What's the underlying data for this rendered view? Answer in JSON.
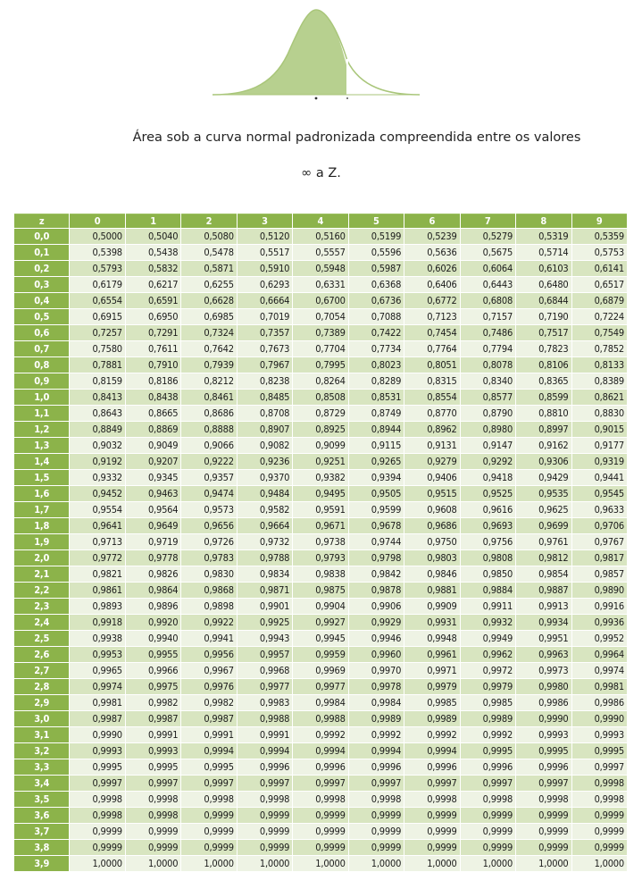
{
  "caption": {
    "line1": "Área sob a curva normal padronizada compreendida entre os valores",
    "line2_symbol": "∞",
    "line2_text": " a Z."
  },
  "colors": {
    "header_green": "#8cb34a",
    "row_light": "#eef3e4",
    "row_dark": "#d8e5c0",
    "curve_fill": "#b7d08f"
  },
  "table": {
    "corner_label": "z",
    "columns": [
      "0",
      "1",
      "2",
      "3",
      "4",
      "5",
      "6",
      "7",
      "8",
      "9"
    ],
    "rows": [
      {
        "z": "0,0",
        "v": [
          "0,5000",
          "0,5040",
          "0,5080",
          "0,5120",
          "0,5160",
          "0,5199",
          "0,5239",
          "0,5279",
          "0,5319",
          "0,5359"
        ]
      },
      {
        "z": "0,1",
        "v": [
          "0,5398",
          "0,5438",
          "0,5478",
          "0,5517",
          "0,5557",
          "0,5596",
          "0,5636",
          "0,5675",
          "0,5714",
          "0,5753"
        ]
      },
      {
        "z": "0,2",
        "v": [
          "0,5793",
          "0,5832",
          "0,5871",
          "0,5910",
          "0,5948",
          "0,5987",
          "0,6026",
          "0,6064",
          "0,6103",
          "0,6141"
        ]
      },
      {
        "z": "0,3",
        "v": [
          "0,6179",
          "0,6217",
          "0,6255",
          "0,6293",
          "0,6331",
          "0,6368",
          "0,6406",
          "0,6443",
          "0,6480",
          "0,6517"
        ]
      },
      {
        "z": "0,4",
        "v": [
          "0,6554",
          "0,6591",
          "0,6628",
          "0,6664",
          "0,6700",
          "0,6736",
          "0,6772",
          "0,6808",
          "0,6844",
          "0,6879"
        ]
      },
      {
        "z": "0,5",
        "v": [
          "0,6915",
          "0,6950",
          "0,6985",
          "0,7019",
          "0,7054",
          "0,7088",
          "0,7123",
          "0,7157",
          "0,7190",
          "0,7224"
        ]
      },
      {
        "z": "0,6",
        "v": [
          "0,7257",
          "0,7291",
          "0,7324",
          "0,7357",
          "0,7389",
          "0,7422",
          "0,7454",
          "0,7486",
          "0,7517",
          "0,7549"
        ]
      },
      {
        "z": "0,7",
        "v": [
          "0,7580",
          "0,7611",
          "0,7642",
          "0,7673",
          "0,7704",
          "0,7734",
          "0,7764",
          "0,7794",
          "0,7823",
          "0,7852"
        ]
      },
      {
        "z": "0,8",
        "v": [
          "0,7881",
          "0,7910",
          "0,7939",
          "0,7967",
          "0,7995",
          "0,8023",
          "0,8051",
          "0,8078",
          "0,8106",
          "0,8133"
        ]
      },
      {
        "z": "0,9",
        "v": [
          "0,8159",
          "0,8186",
          "0,8212",
          "0,8238",
          "0,8264",
          "0,8289",
          "0,8315",
          "0,8340",
          "0,8365",
          "0,8389"
        ]
      },
      {
        "z": "1,0",
        "v": [
          "0,8413",
          "0,8438",
          "0,8461",
          "0,8485",
          "0,8508",
          "0,8531",
          "0,8554",
          "0,8577",
          "0,8599",
          "0,8621"
        ]
      },
      {
        "z": "1,1",
        "v": [
          "0,8643",
          "0,8665",
          "0,8686",
          "0,8708",
          "0,8729",
          "0,8749",
          "0,8770",
          "0,8790",
          "0,8810",
          "0,8830"
        ]
      },
      {
        "z": "1,2",
        "v": [
          "0,8849",
          "0,8869",
          "0,8888",
          "0,8907",
          "0,8925",
          "0,8944",
          "0,8962",
          "0,8980",
          "0,8997",
          "0,9015"
        ]
      },
      {
        "z": "1,3",
        "v": [
          "0,9032",
          "0,9049",
          "0,9066",
          "0,9082",
          "0,9099",
          "0,9115",
          "0,9131",
          "0,9147",
          "0,9162",
          "0,9177"
        ]
      },
      {
        "z": "1,4",
        "v": [
          "0,9192",
          "0,9207",
          "0,9222",
          "0,9236",
          "0,9251",
          "0,9265",
          "0,9279",
          "0,9292",
          "0,9306",
          "0,9319"
        ]
      },
      {
        "z": "1,5",
        "v": [
          "0,9332",
          "0,9345",
          "0,9357",
          "0,9370",
          "0,9382",
          "0,9394",
          "0,9406",
          "0,9418",
          "0,9429",
          "0,9441"
        ]
      },
      {
        "z": "1,6",
        "v": [
          "0,9452",
          "0,9463",
          "0,9474",
          "0,9484",
          "0,9495",
          "0,9505",
          "0,9515",
          "0,9525",
          "0,9535",
          "0,9545"
        ]
      },
      {
        "z": "1,7",
        "v": [
          "0,9554",
          "0,9564",
          "0,9573",
          "0,9582",
          "0,9591",
          "0,9599",
          "0,9608",
          "0,9616",
          "0,9625",
          "0,9633"
        ]
      },
      {
        "z": "1,8",
        "v": [
          "0,9641",
          "0,9649",
          "0,9656",
          "0,9664",
          "0,9671",
          "0,9678",
          "0,9686",
          "0,9693",
          "0,9699",
          "0,9706"
        ]
      },
      {
        "z": "1,9",
        "v": [
          "0,9713",
          "0,9719",
          "0,9726",
          "0,9732",
          "0,9738",
          "0,9744",
          "0,9750",
          "0,9756",
          "0,9761",
          "0,9767"
        ]
      },
      {
        "z": "2,0",
        "v": [
          "0,9772",
          "0,9778",
          "0,9783",
          "0,9788",
          "0,9793",
          "0,9798",
          "0,9803",
          "0,9808",
          "0,9812",
          "0,9817"
        ]
      },
      {
        "z": "2,1",
        "v": [
          "0,9821",
          "0,9826",
          "0,9830",
          "0,9834",
          "0,9838",
          "0,9842",
          "0,9846",
          "0,9850",
          "0,9854",
          "0,9857"
        ]
      },
      {
        "z": "2,2",
        "v": [
          "0,9861",
          "0,9864",
          "0,9868",
          "0,9871",
          "0,9875",
          "0,9878",
          "0,9881",
          "0,9884",
          "0,9887",
          "0,9890"
        ]
      },
      {
        "z": "2,3",
        "v": [
          "0,9893",
          "0,9896",
          "0,9898",
          "0,9901",
          "0,9904",
          "0,9906",
          "0,9909",
          "0,9911",
          "0,9913",
          "0,9916"
        ]
      },
      {
        "z": "2,4",
        "v": [
          "0,9918",
          "0,9920",
          "0,9922",
          "0,9925",
          "0,9927",
          "0,9929",
          "0,9931",
          "0,9932",
          "0,9934",
          "0,9936"
        ]
      },
      {
        "z": "2,5",
        "v": [
          "0,9938",
          "0,9940",
          "0,9941",
          "0,9943",
          "0,9945",
          "0,9946",
          "0,9948",
          "0,9949",
          "0,9951",
          "0,9952"
        ]
      },
      {
        "z": "2,6",
        "v": [
          "0,9953",
          "0,9955",
          "0,9956",
          "0,9957",
          "0,9959",
          "0,9960",
          "0,9961",
          "0,9962",
          "0,9963",
          "0,9964"
        ]
      },
      {
        "z": "2,7",
        "v": [
          "0,9965",
          "0,9966",
          "0,9967",
          "0,9968",
          "0,9969",
          "0,9970",
          "0,9971",
          "0,9972",
          "0,9973",
          "0,9974"
        ]
      },
      {
        "z": "2,8",
        "v": [
          "0,9974",
          "0,9975",
          "0,9976",
          "0,9977",
          "0,9977",
          "0,9978",
          "0,9979",
          "0,9979",
          "0,9980",
          "0,9981"
        ]
      },
      {
        "z": "2,9",
        "v": [
          "0,9981",
          "0,9982",
          "0,9982",
          "0,9983",
          "0,9984",
          "0,9984",
          "0,9985",
          "0,9985",
          "0,9986",
          "0,9986"
        ]
      },
      {
        "z": "3,0",
        "v": [
          "0,9987",
          "0,9987",
          "0,9987",
          "0,9988",
          "0,9988",
          "0,9989",
          "0,9989",
          "0,9989",
          "0,9990",
          "0,9990"
        ]
      },
      {
        "z": "3,1",
        "v": [
          "0,9990",
          "0,9991",
          "0,9991",
          "0,9991",
          "0,9992",
          "0,9992",
          "0,9992",
          "0,9992",
          "0,9993",
          "0,9993"
        ]
      },
      {
        "z": "3,2",
        "v": [
          "0,9993",
          "0,9993",
          "0,9994",
          "0,9994",
          "0,9994",
          "0,9994",
          "0,9994",
          "0,9995",
          "0,9995",
          "0,9995"
        ]
      },
      {
        "z": "3,3",
        "v": [
          "0,9995",
          "0,9995",
          "0,9995",
          "0,9996",
          "0,9996",
          "0,9996",
          "0,9996",
          "0,9996",
          "0,9996",
          "0,9997"
        ]
      },
      {
        "z": "3,4",
        "v": [
          "0,9997",
          "0,9997",
          "0,9997",
          "0,9997",
          "0,9997",
          "0,9997",
          "0,9997",
          "0,9997",
          "0,9997",
          "0,9998"
        ]
      },
      {
        "z": "3,5",
        "v": [
          "0,9998",
          "0,9998",
          "0,9998",
          "0,9998",
          "0,9998",
          "0,9998",
          "0,9998",
          "0,9998",
          "0,9998",
          "0,9998"
        ]
      },
      {
        "z": "3,6",
        "v": [
          "0,9998",
          "0,9998",
          "0,9999",
          "0,9999",
          "0,9999",
          "0,9999",
          "0,9999",
          "0,9999",
          "0,9999",
          "0,9999"
        ]
      },
      {
        "z": "3,7",
        "v": [
          "0,9999",
          "0,9999",
          "0,9999",
          "0,9999",
          "0,9999",
          "0,9999",
          "0,9999",
          "0,9999",
          "0,9999",
          "0,9999"
        ]
      },
      {
        "z": "3,8",
        "v": [
          "0,9999",
          "0,9999",
          "0,9999",
          "0,9999",
          "0,9999",
          "0,9999",
          "0,9999",
          "0,9999",
          "0,9999",
          "0,9999"
        ]
      },
      {
        "z": "3,9",
        "v": [
          "1,0000",
          "1,0000",
          "1,0000",
          "1,0000",
          "1,0000",
          "1,0000",
          "1,0000",
          "1,0000",
          "1,0000",
          "1,0000"
        ]
      }
    ]
  }
}
